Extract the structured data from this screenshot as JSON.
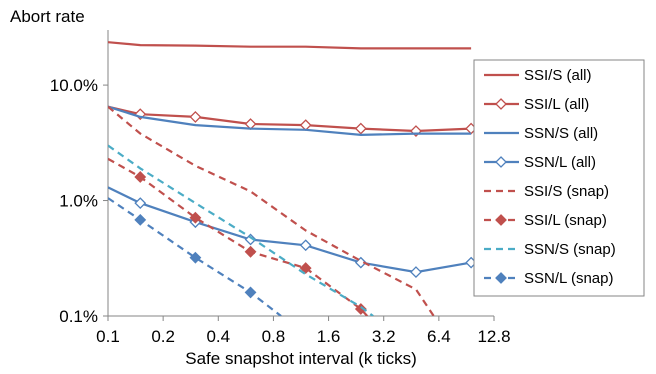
{
  "chart_data": {
    "type": "line",
    "ylabel": "Abort rate",
    "xlabel": "Safe snapshot interval (k ticks)",
    "x_scale": "log2",
    "y_scale": "log10",
    "xlim": [
      0.1,
      12.8
    ],
    "ylim": [
      0.001,
      0.3
    ],
    "x_ticks": [
      {
        "value": 0.1,
        "label": "0.1"
      },
      {
        "value": 0.2,
        "label": "0.2"
      },
      {
        "value": 0.4,
        "label": "0.4"
      },
      {
        "value": 0.8,
        "label": "0.8"
      },
      {
        "value": 1.6,
        "label": "1.6"
      },
      {
        "value": 3.2,
        "label": "3.2"
      },
      {
        "value": 6.4,
        "label": "6.4"
      },
      {
        "value": 12.8,
        "label": "12.8"
      }
    ],
    "y_ticks": [
      {
        "value": 0.001,
        "label": "0.1%"
      },
      {
        "value": 0.01,
        "label": "1.0%"
      },
      {
        "value": 0.1,
        "label": "10.0%"
      }
    ],
    "grid": false,
    "legend_position": "right",
    "series": [
      {
        "name": "SSI/S (all)",
        "color": "#c0504d",
        "dash": "solid",
        "marker": "none",
        "x": [
          0.1,
          0.15,
          0.3,
          0.6,
          1.2,
          2.4,
          4.8,
          9.6
        ],
        "y": [
          0.235,
          0.222,
          0.22,
          0.215,
          0.215,
          0.208,
          0.208,
          0.208
        ]
      },
      {
        "name": "SSI/L (all)",
        "color": "#c0504d",
        "dash": "solid",
        "marker": "diamond-open",
        "x": [
          0.1,
          0.15,
          0.3,
          0.6,
          1.2,
          2.4,
          4.8,
          9.6
        ],
        "y": [
          0.065,
          0.056,
          0.053,
          0.046,
          0.045,
          0.042,
          0.04,
          0.042
        ]
      },
      {
        "name": "SSN/S (all)",
        "color": "#4f81bd",
        "dash": "solid",
        "marker": "none",
        "x": [
          0.1,
          0.15,
          0.3,
          0.6,
          1.2,
          2.4,
          4.8,
          9.6
        ],
        "y": [
          0.065,
          0.053,
          0.045,
          0.042,
          0.041,
          0.037,
          0.038,
          0.038
        ]
      },
      {
        "name": "SSN/L (all)",
        "color": "#4f81bd",
        "dash": "solid",
        "marker": "diamond-open",
        "x": [
          0.1,
          0.15,
          0.3,
          0.6,
          1.2,
          2.4,
          4.8,
          9.6
        ],
        "y": [
          0.013,
          0.0095,
          0.0065,
          0.0046,
          0.0041,
          0.0029,
          0.0024,
          0.0029
        ]
      },
      {
        "name": "SSI/S (snap)",
        "color": "#c0504d",
        "dash": "dashed",
        "marker": "none",
        "x": [
          0.1,
          0.15,
          0.3,
          0.6,
          1.2,
          2.4,
          4.8,
          6.0
        ],
        "y": [
          0.065,
          0.038,
          0.02,
          0.012,
          0.0055,
          0.003,
          0.0017,
          0.001
        ]
      },
      {
        "name": "SSI/L (snap)",
        "color": "#c0504d",
        "dash": "dashed",
        "marker": "diamond-filled",
        "x": [
          0.1,
          0.15,
          0.3,
          0.6,
          1.2,
          2.4,
          2.6
        ],
        "y": [
          0.023,
          0.016,
          0.0071,
          0.0036,
          0.0026,
          0.00115,
          0.001
        ]
      },
      {
        "name": "SSN/S (snap)",
        "color": "#4bacc6",
        "dash": "dashed",
        "marker": "none",
        "x": [
          0.1,
          0.15,
          0.3,
          0.6,
          1.2,
          2.4,
          2.8
        ],
        "y": [
          0.03,
          0.019,
          0.0095,
          0.0048,
          0.0023,
          0.0012,
          0.001
        ]
      },
      {
        "name": "SSN/L (snap)",
        "color": "#4f81bd",
        "dash": "dashed",
        "marker": "diamond-filled",
        "x": [
          0.1,
          0.15,
          0.3,
          0.6,
          0.88
        ],
        "y": [
          0.0105,
          0.0068,
          0.0032,
          0.0016,
          0.001
        ]
      }
    ]
  }
}
